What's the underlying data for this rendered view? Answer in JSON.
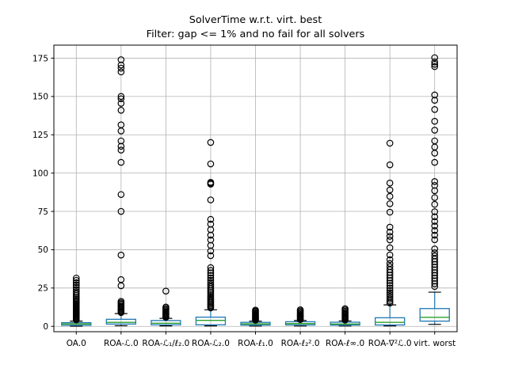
{
  "figure": {
    "background": "#ffffff"
  },
  "chart_data": {
    "type": "boxplot",
    "title": "SolverTime w.r.t. virt. best",
    "subtitle": "Filter: gap <= 1% and no fail for all solvers",
    "xlabel": "",
    "ylabel": "",
    "grid": true,
    "legend": "none",
    "ylim": [
      -3.5,
      183.5
    ],
    "yticks": [
      0,
      25,
      50,
      75,
      100,
      125,
      150,
      175
    ],
    "categories": [
      "OA.0",
      "ROA-ℒ.0",
      "ROA-ℒ₁/ℓ₂.0",
      "ROA-ℒ₂.0",
      "ROA-ℓ₁.0",
      "ROA-ℓ₂².0",
      "ROA-ℓ∞.0",
      "ROA-∇²ℒ.0",
      "virt. worst"
    ],
    "colors": {
      "box": "#1f77b4",
      "whisker": "#1f77b4",
      "cap": "#000000",
      "median": "#2ca02c",
      "flier_edge": "#000000",
      "grid": "#b2b2b2",
      "axis": "#000000",
      "text": "#000000"
    },
    "boxes": [
      {
        "label": "OA.0",
        "whislo": 0.1,
        "q1": 0.7,
        "med": 1.6,
        "q3": 2.4,
        "whishi": 3.4,
        "fliers": [
          4.2,
          4.8,
          5.4,
          6.0,
          6.6,
          7.2,
          7.8,
          8.4,
          9.0,
          9.6,
          10.2,
          10.8,
          11.5,
          12.2,
          13.0,
          13.8,
          14.6,
          15.4,
          16.2,
          17.0,
          18.0,
          19.0,
          20.2,
          21.4,
          22.6,
          24.0,
          25.5,
          27.0,
          28.5,
          30.0,
          31.5
        ]
      },
      {
        "label": "ROA-ℒ.0",
        "whislo": 0.4,
        "q1": 1.5,
        "med": 2.6,
        "q3": 4.6,
        "whishi": 8.3,
        "fliers": [
          9.0,
          9.6,
          10.2,
          10.9,
          11.6,
          12.3,
          13.0,
          13.8,
          14.6,
          15.4,
          16.3,
          26.5,
          30.5,
          46.5,
          75.0,
          86.0,
          107.0,
          115.0,
          117.5,
          121.0,
          127.5,
          131.5,
          141.0,
          145.5,
          148.5,
          150.0,
          166.0,
          168.5,
          170.5,
          174.0
        ]
      },
      {
        "label": "ROA-ℒ₁/ℓ₂.0",
        "whislo": 0.3,
        "q1": 1.0,
        "med": 2.0,
        "q3": 3.8,
        "whishi": 5.2,
        "fliers": [
          5.8,
          6.4,
          7.0,
          7.6,
          8.2,
          8.8,
          9.5,
          10.2,
          11.0,
          11.8,
          12.6,
          23.0
        ]
      },
      {
        "label": "ROA-ℒ₂.0",
        "whislo": 0.3,
        "q1": 1.0,
        "med": 3.9,
        "q3": 6.0,
        "whishi": 10.8,
        "fliers": [
          12.0,
          12.8,
          13.6,
          14.5,
          15.4,
          16.3,
          17.2,
          18.2,
          19.2,
          20.2,
          21.3,
          22.4,
          23.6,
          24.8,
          26.0,
          27.3,
          28.7,
          30.1,
          31.6,
          33.2,
          34.8,
          36.5,
          38.3,
          46.1,
          49.2,
          52.8,
          56.4,
          59.5,
          63.1,
          66.7,
          69.8,
          82.5,
          92.8,
          93.4,
          94.0,
          106.0,
          120.0
        ]
      },
      {
        "label": "ROA-ℓ₁.0",
        "whislo": 0.2,
        "q1": 0.8,
        "med": 1.6,
        "q3": 2.6,
        "whishi": 3.4,
        "fliers": [
          4.0,
          4.5,
          5.0,
          5.5,
          6.0,
          6.5,
          7.0,
          7.5,
          8.0,
          8.6,
          9.2,
          9.9,
          10.6
        ]
      },
      {
        "label": "ROA-ℓ₂².0",
        "whislo": 0.2,
        "q1": 0.9,
        "med": 1.8,
        "q3": 3.0,
        "whishi": 3.8,
        "fliers": [
          4.4,
          4.9,
          5.4,
          6.0,
          6.6,
          7.2,
          7.8,
          8.5,
          9.2,
          10.0,
          10.8
        ]
      },
      {
        "label": "ROA-ℓ∞.0",
        "whislo": 0.2,
        "q1": 0.8,
        "med": 1.5,
        "q3": 2.7,
        "whishi": 3.5,
        "fliers": [
          4.1,
          4.6,
          5.2,
          5.8,
          6.4,
          7.0,
          7.7,
          8.4,
          9.1,
          9.9,
          10.7,
          11.5
        ]
      },
      {
        "label": "ROA-∇²ℒ.0",
        "whislo": 0.3,
        "q1": 0.9,
        "med": 2.6,
        "q3": 5.6,
        "whishi": 14.0,
        "fliers": [
          15.2,
          16.5,
          17.8,
          19.2,
          20.6,
          22.0,
          23.5,
          25.0,
          26.6,
          28.2,
          29.9,
          31.6,
          33.4,
          35.2,
          37.0,
          39.0,
          41.0,
          43.5,
          46.6,
          51.3,
          56.4,
          58.8,
          61.5,
          64.7,
          74.5,
          80.0,
          84.8,
          89.0,
          93.5,
          105.4,
          119.5
        ]
      },
      {
        "label": "virt. worst",
        "whislo": 1.3,
        "q1": 3.4,
        "med": 5.9,
        "q3": 11.6,
        "whishi": 22.3,
        "fliers": [
          26.0,
          27.8,
          29.6,
          31.4,
          33.2,
          35.0,
          36.8,
          38.6,
          40.4,
          42.2,
          44.0,
          46.0,
          48.0,
          50.5,
          56.5,
          59.5,
          62.5,
          65.5,
          68.5,
          71.5,
          74.8,
          79.6,
          84.0,
          88.5,
          92.0,
          94.5,
          107.0,
          113.0,
          117.0,
          121.0,
          128.0,
          133.8,
          141.5,
          147.5,
          151.0,
          169.5,
          171.0,
          172.5,
          175.3
        ]
      }
    ]
  }
}
